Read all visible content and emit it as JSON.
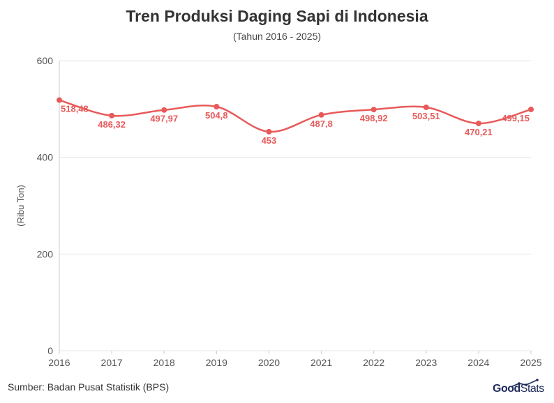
{
  "header": {
    "title": "Tren Produksi Daging Sapi di Indonesia",
    "subtitle": "(Tahun 2016 - 2025)"
  },
  "footer": {
    "source": "Sumber: Badan Pusat Statistik (BPS)",
    "logo_good": "Good",
    "logo_stats": "Stats"
  },
  "colors": {
    "line": "#e85a5a",
    "grid": "#e6e6e6",
    "axis": "#cccccc"
  },
  "chart_data": {
    "type": "line",
    "title": "Tren Produksi Daging Sapi di Indonesia",
    "subtitle": "(Tahun 2016 - 2025)",
    "xlabel": "",
    "ylabel": "(Ribu Ton)",
    "ylim": [
      0,
      600
    ],
    "yticks": [
      0,
      200,
      400,
      600
    ],
    "grid": true,
    "legend": "none",
    "x": [
      "2016",
      "2017",
      "2018",
      "2019",
      "2020",
      "2021",
      "2022",
      "2023",
      "2024",
      "2025"
    ],
    "series": [
      {
        "values": [
          518.48,
          486.32,
          497.97,
          504.8,
          453,
          487.8,
          498.92,
          503.51,
          470.21,
          499.15
        ],
        "labels": [
          "518,48",
          "486,32",
          "497,97",
          "504,8",
          "453",
          "487,8",
          "498,92",
          "503,51",
          "470,21",
          "499,15"
        ]
      }
    ]
  }
}
